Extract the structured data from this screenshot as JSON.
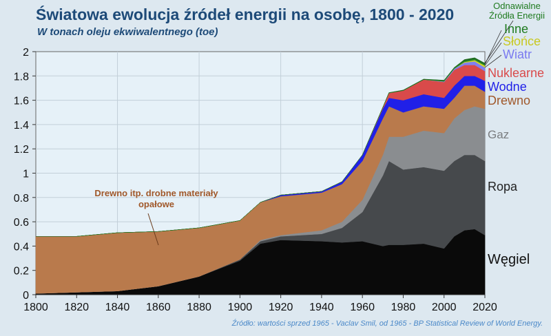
{
  "chart_data": {
    "type": "area",
    "stacked": true,
    "title": "Światowa ewolucja źródeł energii na osobę, 1800 - 2020",
    "subtitle": "W tonach oleju ekwiwalentnego (toe)",
    "xlabel": "",
    "ylabel": "",
    "xlim": [
      1800,
      2020
    ],
    "ylim": [
      0,
      2
    ],
    "grid": true,
    "x_ticks": [
      "1800",
      "1820",
      "1840",
      "1860",
      "1880",
      "1900",
      "1920",
      "1940",
      "1960",
      "1980",
      "2000",
      "2020"
    ],
    "y_ticks": [
      "0",
      "0.2",
      "0.4",
      "0.6",
      "0.8",
      "1",
      "1.2",
      "1.4",
      "1.6",
      "1.8",
      "2"
    ],
    "x": [
      1800,
      1820,
      1840,
      1860,
      1880,
      1900,
      1910,
      1920,
      1940,
      1950,
      1960,
      1970,
      1973,
      1980,
      1990,
      2000,
      2005,
      2010,
      2015,
      2020
    ],
    "series": [
      {
        "name": "Węgiel",
        "color": "#0a0a0a",
        "label_color": "#111111",
        "values": [
          0.01,
          0.02,
          0.03,
          0.07,
          0.15,
          0.28,
          0.42,
          0.45,
          0.44,
          0.43,
          0.44,
          0.4,
          0.41,
          0.41,
          0.42,
          0.38,
          0.48,
          0.53,
          0.54,
          0.49
        ]
      },
      {
        "name": "Ropa",
        "color": "#46494c",
        "label_color": "#222222",
        "values": [
          0,
          0,
          0,
          0,
          0,
          0.01,
          0.02,
          0.03,
          0.06,
          0.12,
          0.24,
          0.58,
          0.69,
          0.62,
          0.63,
          0.64,
          0.62,
          0.62,
          0.61,
          0.61
        ]
      },
      {
        "name": "Gaz",
        "color": "#8a8d90",
        "label_color": "#7a7d80",
        "values": [
          0,
          0,
          0,
          0,
          0,
          0,
          0.01,
          0.01,
          0.03,
          0.05,
          0.1,
          0.17,
          0.2,
          0.27,
          0.3,
          0.31,
          0.35,
          0.37,
          0.4,
          0.43
        ]
      },
      {
        "name": "Drewno",
        "color": "#b97a4c",
        "label_color": "#a0582a",
        "values": [
          0.47,
          0.46,
          0.48,
          0.45,
          0.4,
          0.32,
          0.31,
          0.32,
          0.31,
          0.31,
          0.32,
          0.3,
          0.25,
          0.2,
          0.2,
          0.2,
          0.17,
          0.2,
          0.17,
          0.14
        ]
      },
      {
        "name": "Wodne",
        "color": "#2020e8",
        "label_color": "#2020e8",
        "values": [
          0,
          0,
          0,
          0,
          0,
          0,
          0,
          0.01,
          0.01,
          0.02,
          0.05,
          0.08,
          0.07,
          0.1,
          0.1,
          0.09,
          0.1,
          0.08,
          0.08,
          0.09
        ]
      },
      {
        "name": "Nuklearne",
        "color": "#d94a4a",
        "label_color": "#d94a4a",
        "values": [
          0,
          0,
          0,
          0,
          0,
          0,
          0,
          0,
          0,
          0,
          0,
          0.01,
          0.04,
          0.08,
          0.12,
          0.13,
          0.13,
          0.09,
          0.09,
          0.08
        ]
      },
      {
        "name": "Wiatr",
        "color": "#8080f0",
        "label_color": "#7a7af0",
        "values": [
          0,
          0,
          0,
          0,
          0,
          0,
          0,
          0,
          0,
          0,
          0,
          0,
          0,
          0,
          0,
          0.005,
          0.01,
          0.02,
          0.03,
          0.03
        ]
      },
      {
        "name": "Słońce",
        "color": "#d8d820",
        "label_color": "#c8c820",
        "values": [
          0,
          0,
          0,
          0,
          0,
          0,
          0,
          0,
          0,
          0,
          0,
          0,
          0,
          0,
          0,
          0,
          0,
          0.005,
          0.01,
          0.015
        ]
      },
      {
        "name": "Inne",
        "color": "#2a8a2a",
        "label_color": "#1e7a1e",
        "values": [
          0,
          0,
          0,
          0,
          0,
          0,
          0,
          0,
          0,
          0,
          0,
          0,
          0,
          0,
          0,
          0.005,
          0.005,
          0.01,
          0.01,
          0.01
        ]
      },
      {
        "name": "Odnawialne Źródła Energii",
        "color": "#1e6a1e",
        "label_color": "#1e7a1e",
        "values": [
          0,
          0,
          0,
          0,
          0,
          0,
          0,
          0,
          0,
          0,
          0,
          0.003,
          0.003,
          0.004,
          0.004,
          0.005,
          0.005,
          0.01,
          0.01,
          0.01
        ]
      }
    ],
    "annotation": "Drewno itp. drobne materiały opałowe",
    "source": "Źródło: wartości sprzed 1965 - Vaclav Smil, od 1965 - BP Statistical Review of World Energy."
  }
}
